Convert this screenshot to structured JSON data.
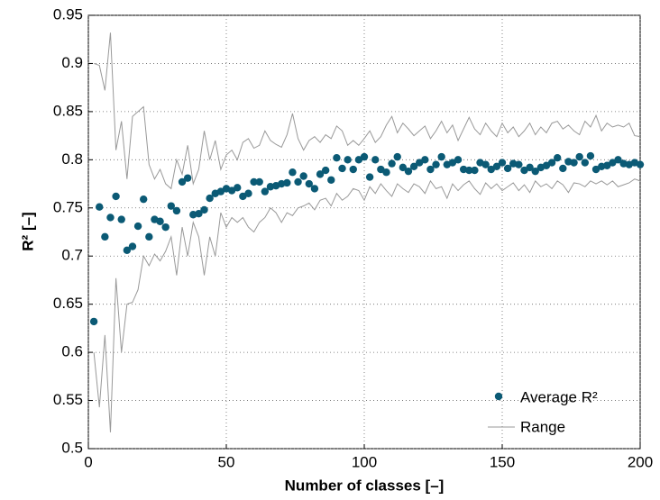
{
  "chart_data": {
    "type": "scatter",
    "xlabel": "Number of classes [–]",
    "ylabel": "R² [–]",
    "xlim": [
      0,
      200
    ],
    "xticks": [
      0,
      50,
      100,
      150,
      200
    ],
    "ylim": [
      0.5,
      0.95
    ],
    "yticks": [
      0.5,
      0.55,
      0.6,
      0.65,
      0.7,
      0.75,
      0.8,
      0.85,
      0.9,
      0.95
    ],
    "grid": true,
    "legend": "lower right",
    "x": [
      2,
      4,
      6,
      8,
      10,
      12,
      14,
      16,
      18,
      20,
      22,
      24,
      26,
      28,
      30,
      32,
      34,
      36,
      38,
      40,
      42,
      44,
      46,
      48,
      50,
      52,
      54,
      56,
      58,
      60,
      62,
      64,
      66,
      68,
      70,
      72,
      74,
      76,
      78,
      80,
      82,
      84,
      86,
      88,
      90,
      92,
      94,
      96,
      98,
      100,
      102,
      104,
      106,
      108,
      110,
      112,
      114,
      116,
      118,
      120,
      122,
      124,
      126,
      128,
      130,
      132,
      134,
      136,
      138,
      140,
      142,
      144,
      146,
      148,
      150,
      152,
      154,
      156,
      158,
      160,
      162,
      164,
      166,
      168,
      170,
      172,
      174,
      176,
      178,
      180,
      182,
      184,
      186,
      188,
      190,
      192,
      194,
      196,
      198,
      200
    ],
    "series": [
      {
        "name": "Average R²",
        "color": "#0b5a75",
        "values": [
          0.632,
          0.751,
          0.72,
          0.74,
          0.762,
          0.738,
          0.706,
          0.71,
          0.731,
          0.759,
          0.72,
          0.738,
          0.736,
          0.73,
          0.752,
          0.747,
          0.777,
          0.781,
          0.743,
          0.744,
          0.748,
          0.76,
          0.765,
          0.767,
          0.77,
          0.768,
          0.771,
          0.762,
          0.765,
          0.777,
          0.777,
          0.767,
          0.772,
          0.773,
          0.775,
          0.776,
          0.787,
          0.777,
          0.783,
          0.775,
          0.77,
          0.785,
          0.789,
          0.779,
          0.802,
          0.791,
          0.8,
          0.79,
          0.8,
          0.803,
          0.782,
          0.8,
          0.79,
          0.787,
          0.796,
          0.803,
          0.792,
          0.788,
          0.793,
          0.797,
          0.8,
          0.79,
          0.795,
          0.803,
          0.795,
          0.797,
          0.8,
          0.79,
          0.789,
          0.789,
          0.797,
          0.795,
          0.79,
          0.793,
          0.797,
          0.791,
          0.796,
          0.795,
          0.789,
          0.792,
          0.788,
          0.792,
          0.794,
          0.797,
          0.802,
          0.791,
          0.798,
          0.797,
          0.803,
          0.797,
          0.804,
          0.79,
          0.793,
          0.794,
          0.797,
          0.8,
          0.796,
          0.795,
          0.797,
          0.795
        ]
      },
      {
        "name": "Range",
        "color": "#999999",
        "upper": [
          0.9,
          0.898,
          0.872,
          0.932,
          0.81,
          0.84,
          0.78,
          0.845,
          0.85,
          0.855,
          0.795,
          0.78,
          0.79,
          0.775,
          0.77,
          0.8,
          0.785,
          0.815,
          0.775,
          0.79,
          0.83,
          0.8,
          0.82,
          0.79,
          0.805,
          0.81,
          0.8,
          0.818,
          0.822,
          0.812,
          0.815,
          0.83,
          0.82,
          0.816,
          0.813,
          0.826,
          0.848,
          0.822,
          0.81,
          0.82,
          0.824,
          0.818,
          0.826,
          0.822,
          0.835,
          0.83,
          0.815,
          0.82,
          0.815,
          0.822,
          0.83,
          0.818,
          0.824,
          0.836,
          0.845,
          0.828,
          0.838,
          0.832,
          0.825,
          0.83,
          0.835,
          0.822,
          0.83,
          0.84,
          0.828,
          0.836,
          0.82,
          0.832,
          0.844,
          0.832,
          0.826,
          0.838,
          0.83,
          0.824,
          0.838,
          0.828,
          0.834,
          0.824,
          0.83,
          0.838,
          0.826,
          0.834,
          0.828,
          0.838,
          0.84,
          0.832,
          0.836,
          0.83,
          0.826,
          0.84,
          0.834,
          0.846,
          0.83,
          0.838,
          0.834,
          0.836,
          0.834,
          0.838,
          0.825,
          0.824
        ],
        "lower": [
          0.6,
          0.543,
          0.618,
          0.517,
          0.677,
          0.6,
          0.65,
          0.652,
          0.665,
          0.7,
          0.69,
          0.702,
          0.695,
          0.705,
          0.72,
          0.68,
          0.73,
          0.7,
          0.735,
          0.72,
          0.68,
          0.72,
          0.7,
          0.745,
          0.73,
          0.74,
          0.735,
          0.74,
          0.73,
          0.725,
          0.735,
          0.74,
          0.75,
          0.745,
          0.735,
          0.745,
          0.742,
          0.75,
          0.752,
          0.755,
          0.748,
          0.758,
          0.76,
          0.752,
          0.765,
          0.758,
          0.762,
          0.77,
          0.768,
          0.758,
          0.772,
          0.765,
          0.775,
          0.768,
          0.762,
          0.775,
          0.77,
          0.766,
          0.775,
          0.772,
          0.765,
          0.778,
          0.77,
          0.772,
          0.76,
          0.775,
          0.768,
          0.774,
          0.778,
          0.77,
          0.764,
          0.776,
          0.77,
          0.775,
          0.768,
          0.772,
          0.776,
          0.768,
          0.774,
          0.766,
          0.778,
          0.772,
          0.775,
          0.77,
          0.778,
          0.774,
          0.766,
          0.776,
          0.775,
          0.772,
          0.778,
          0.775,
          0.778,
          0.774,
          0.778,
          0.772,
          0.774,
          0.776,
          0.78,
          0.778
        ]
      }
    ]
  }
}
